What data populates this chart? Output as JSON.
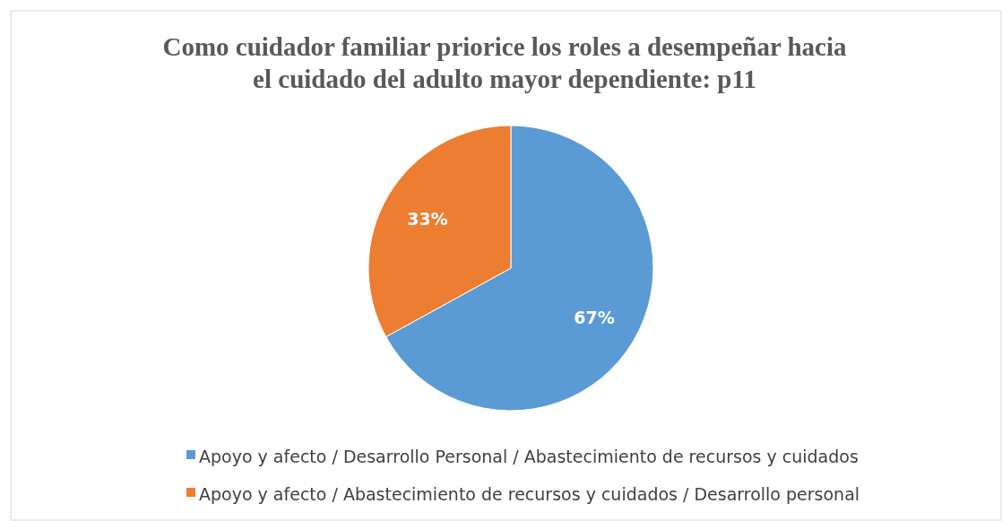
{
  "chart_data": {
    "type": "pie",
    "title": "Como cuidador familiar  priorice los roles a desempeñar hacia el cuidado del adulto mayor dependiente: p11",
    "categories": [
      "Apoyo y afecto / Desarrollo Personal / Abastecimiento de recursos y cuidados",
      "Apoyo y afecto / Abastecimiento de recursos y cuidados / Desarrollo personal"
    ],
    "values": [
      67,
      33
    ],
    "colors": [
      "#5b9bd5",
      "#ed7d31"
    ],
    "value_labels": [
      "67%",
      "33%"
    ],
    "legend": "bottom"
  }
}
